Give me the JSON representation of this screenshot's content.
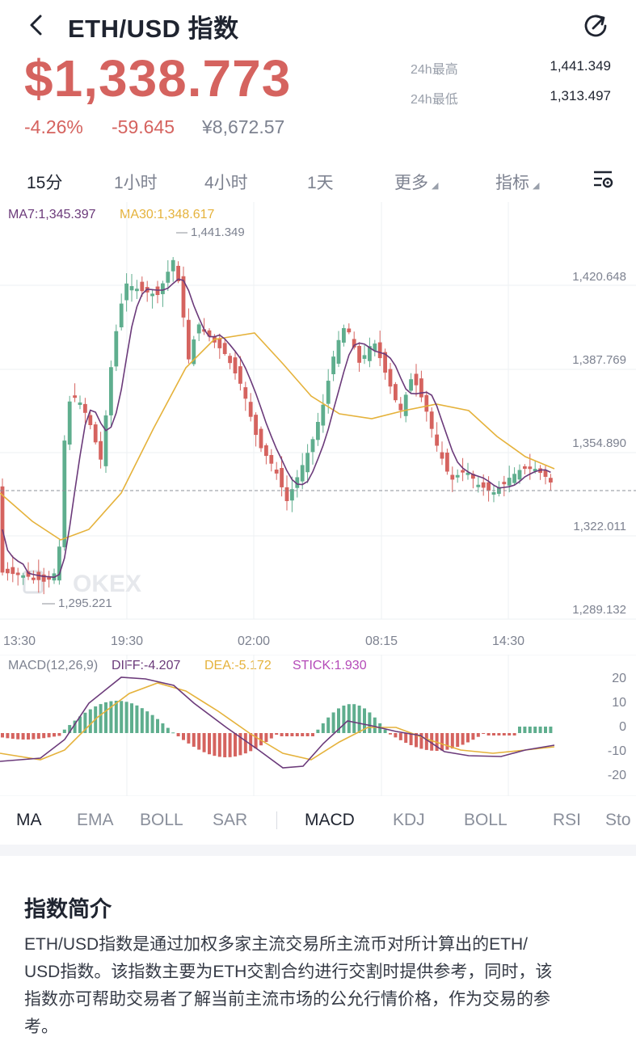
{
  "header": {
    "title": "ETH/USD 指数",
    "back_icon": "chevron-left-icon",
    "share_icon": "share-icon"
  },
  "price": {
    "last": "$1,338.773",
    "change_pct": "-4.26%",
    "change_abs": "-59.645",
    "cny": "¥8,672.57",
    "high_label": "24h最高",
    "high_value": "1,441.349",
    "low_label": "24h最低",
    "low_value": "1,313.497",
    "color_down": "#d5635f",
    "color_up": "#5fae8e"
  },
  "timeframes": {
    "items": [
      "15分",
      "1小时",
      "4小时",
      "1天",
      "更多",
      "指标"
    ],
    "active": "15分",
    "settings_icon": "chart-settings-icon"
  },
  "ma_legend": {
    "ma7": "MA7:1,345.397",
    "ma30": "MA30:1,348.617"
  },
  "chart_data": {
    "type": "candlestick",
    "y_ticks": [
      "1,420.648",
      "1,387.769",
      "1,354.890",
      "1,322.011",
      "1,289.132"
    ],
    "x_ticks": [
      "13:30",
      "19:30",
      "02:00",
      "08:15",
      "14:30"
    ],
    "max_label": "1,441.349",
    "min_label": "1,295.221",
    "watermark": "OKEX",
    "current_price": 1338.773,
    "ma_series": [
      {
        "name": "MA7",
        "color": "#6b3a7a"
      },
      {
        "name": "MA30",
        "color": "#e5b23b"
      }
    ]
  },
  "macd": {
    "label": "MACD(12,26,9)",
    "diff": "DIFF:-4.207",
    "dea": "DEA:-5.172",
    "stick": "STICK:1.930",
    "y_ticks": [
      "20",
      "10",
      "0",
      "-10",
      "-20"
    ]
  },
  "indicator_tabs": {
    "main": [
      "MA",
      "EMA",
      "BOLL",
      "SAR"
    ],
    "sub": [
      "MACD",
      "KDJ",
      "BOLL",
      "RSI",
      "Sto"
    ],
    "active_main": "MA",
    "active_sub": "MACD"
  },
  "intro": {
    "title": "指数简介",
    "lines": [
      "ETH/USD指数是通过加权多家主流交易所主流币对所计算出的ETH/",
      "USD指数。该指数主要为ETH交割合约进行交割时提供参考，同时，该",
      "指数亦可帮助交易者了解当前主流市场的公允行情价格，作为交易的参",
      "考。"
    ]
  }
}
